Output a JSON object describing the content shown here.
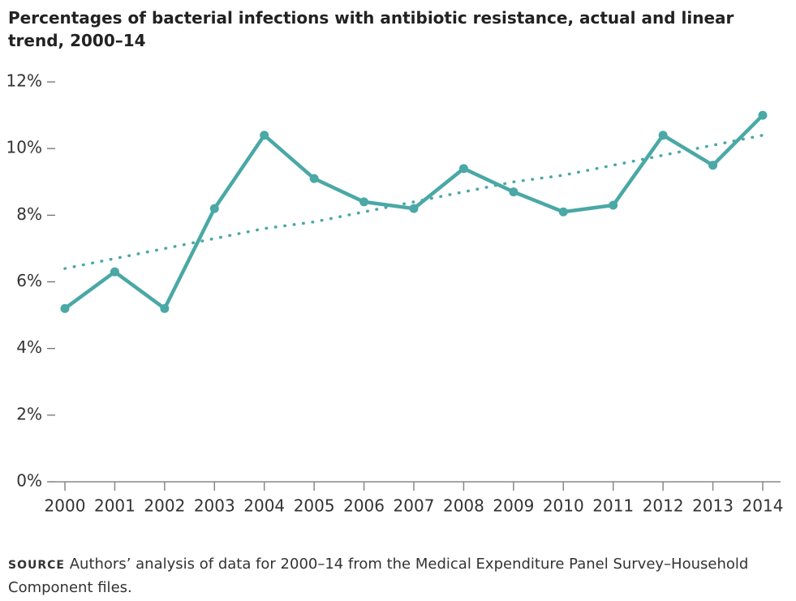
{
  "chart_data": {
    "type": "line",
    "title": "Percentages of bacterial infections with antibiotic resistance, actual and linear trend, 2000–14",
    "categories": [
      "2000",
      "2001",
      "2002",
      "2003",
      "2004",
      "2005",
      "2006",
      "2007",
      "2008",
      "2009",
      "2010",
      "2011",
      "2012",
      "2013",
      "2014"
    ],
    "series": [
      {
        "color": "#4aa8a6",
        "style": "solid",
        "values": [
          5.2,
          6.3,
          5.2,
          8.2,
          10.4,
          9.1,
          8.4,
          8.2,
          9.4,
          8.7,
          8.1,
          8.3,
          10.4,
          9.5,
          11.0
        ]
      },
      {
        "color": "#4aa8a6",
        "style": "dotted",
        "values": [
          6.4,
          6.7,
          7.0,
          7.3,
          7.6,
          7.8,
          8.1,
          8.4,
          8.7,
          9.0,
          9.2,
          9.5,
          9.8,
          10.1,
          10.4
        ]
      }
    ],
    "ylim": [
      0,
      12
    ],
    "yticks": [
      {
        "value": 0,
        "label": "0%"
      },
      {
        "value": 2,
        "label": "2%"
      },
      {
        "value": 4,
        "label": "4%"
      },
      {
        "value": 6,
        "label": "6%"
      },
      {
        "value": 8,
        "label": "8%"
      },
      {
        "value": 10,
        "label": "10%"
      },
      {
        "value": 12,
        "label": "12%"
      }
    ],
    "grid": false,
    "source_label": "SOURCE",
    "source_text": "Authors’ analysis of data for 2000–14 from the Medical Expenditure Panel Survey–House­hold Component files."
  }
}
